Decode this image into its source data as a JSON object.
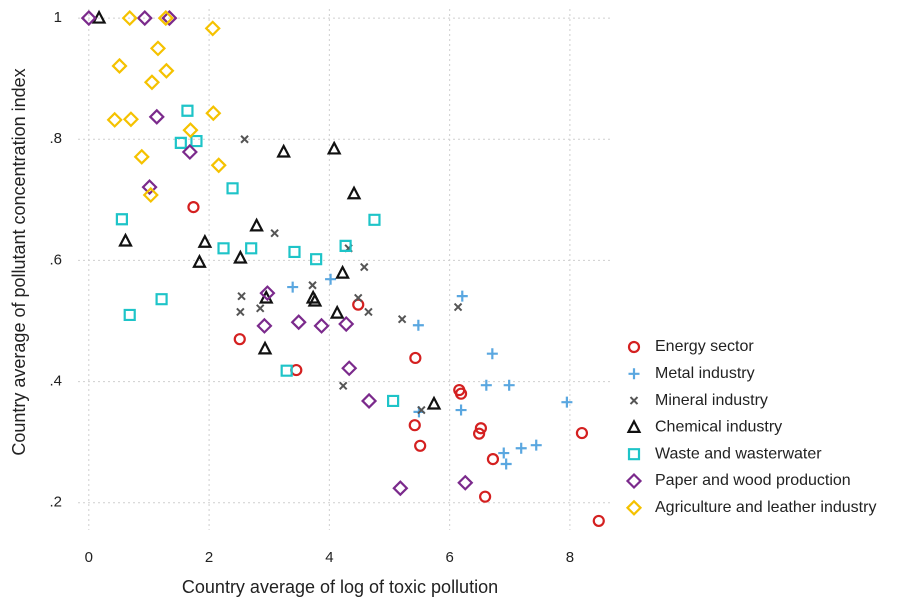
{
  "chart_data": {
    "type": "scatter",
    "x_label": "Country average of log of toxic pollution",
    "y_label": "Country average of pollutant concentration index",
    "xlim": [
      -0.18,
      8.7
    ],
    "ylim": [
      0.155,
      1.015
    ],
    "xticks": [
      0,
      2,
      4,
      6,
      8
    ],
    "yticks": [
      {
        "value": 0.2,
        "label": ".2"
      },
      {
        "value": 0.4,
        "label": ".4"
      },
      {
        "value": 0.6,
        "label": ".6"
      },
      {
        "value": 0.8,
        "label": ".8"
      },
      1
    ],
    "grid": true,
    "legend": "right",
    "series": [
      {
        "name": "Energy sector",
        "color": "#d42020",
        "marker": "circle",
        "x": [
          1.74,
          2.51,
          3.45,
          4.48,
          5.43,
          5.42,
          5.51,
          6.16,
          6.19,
          6.52,
          6.49,
          6.72,
          6.59,
          8.2,
          8.48
        ],
        "values": [
          0.688,
          0.47,
          0.419,
          0.527,
          0.439,
          0.328,
          0.294,
          0.386,
          0.38,
          0.323,
          0.314,
          0.272,
          0.21,
          0.315,
          0.17
        ]
      },
      {
        "name": "Metal industry",
        "color": "#5aa7e0",
        "marker": "plus",
        "x": [
          3.39,
          4.02,
          6.21,
          5.48,
          6.71,
          6.61,
          6.99,
          6.19,
          5.49,
          6.9,
          6.94,
          7.19,
          7.44,
          7.95
        ],
        "values": [
          0.556,
          0.569,
          0.541,
          0.493,
          0.446,
          0.394,
          0.394,
          0.353,
          0.35,
          0.282,
          0.264,
          0.29,
          0.295,
          0.366
        ]
      },
      {
        "name": "Mineral industry",
        "color": "#555555",
        "marker": "cross",
        "x": [
          2.59,
          2.54,
          2.52,
          2.85,
          3.09,
          3.72,
          4.32,
          4.58,
          4.48,
          4.65,
          5.21,
          6.14,
          4.23,
          5.53
        ],
        "values": [
          0.8,
          0.541,
          0.515,
          0.521,
          0.645,
          0.559,
          0.62,
          0.589,
          0.538,
          0.515,
          0.503,
          0.523,
          0.393,
          0.353
        ]
      },
      {
        "name": "Chemical industry",
        "color": "#111111",
        "marker": "triangle",
        "x": [
          0.17,
          0.61,
          1.93,
          1.84,
          2.52,
          2.79,
          2.95,
          2.93,
          3.24,
          4.08,
          4.41,
          3.73,
          3.76,
          4.22,
          4.13,
          5.74
        ],
        "values": [
          1.0,
          0.632,
          0.63,
          0.597,
          0.604,
          0.657,
          0.538,
          0.454,
          0.779,
          0.784,
          0.71,
          0.538,
          0.533,
          0.579,
          0.513,
          0.363
        ]
      },
      {
        "name": "Waste and wasterwater",
        "color": "#1ec4c8",
        "marker": "square",
        "x": [
          1.64,
          1.53,
          1.79,
          2.39,
          4.75,
          0.55,
          2.7,
          2.24,
          3.42,
          3.78,
          4.27,
          1.21,
          0.68,
          3.29,
          5.06
        ],
        "values": [
          0.847,
          0.794,
          0.797,
          0.719,
          0.667,
          0.668,
          0.62,
          0.62,
          0.614,
          0.602,
          0.624,
          0.536,
          0.51,
          0.418,
          0.368
        ]
      },
      {
        "name": "Paper and wood production",
        "color": "#7b2a8c",
        "marker": "diamond",
        "x": [
          0.0,
          0.93,
          1.34,
          1.13,
          1.68,
          1.01,
          2.97,
          2.92,
          3.49,
          3.87,
          4.28,
          4.33,
          4.66,
          5.18,
          6.26
        ],
        "values": [
          1.0,
          1.0,
          1.0,
          0.837,
          0.779,
          0.721,
          0.546,
          0.492,
          0.498,
          0.492,
          0.495,
          0.422,
          0.368,
          0.224,
          0.233
        ]
      },
      {
        "name": "Agriculture and leather industry",
        "color": "#f5c200",
        "marker": "diamond",
        "x": [
          0.68,
          1.28,
          2.06,
          1.15,
          0.51,
          1.29,
          1.05,
          0.43,
          0.7,
          2.07,
          1.69,
          2.16,
          0.88,
          1.03
        ],
        "values": [
          1.0,
          1.0,
          0.983,
          0.95,
          0.921,
          0.913,
          0.894,
          0.832,
          0.833,
          0.843,
          0.815,
          0.757,
          0.771,
          0.708
        ]
      }
    ]
  }
}
